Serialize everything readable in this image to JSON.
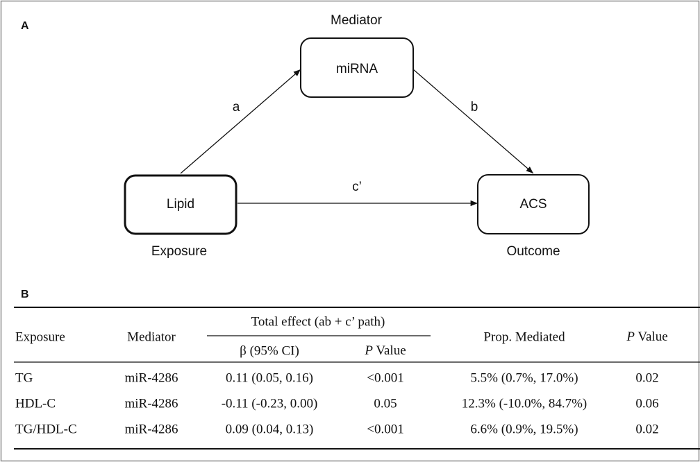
{
  "panel_a": {
    "label": "A",
    "mediator_caption": "Mediator",
    "exposure_caption": "Exposure",
    "outcome_caption": "Outcome",
    "nodes": {
      "mediator": "miRNA",
      "exposure": "Lipid",
      "outcome": "ACS"
    },
    "paths": {
      "a": "a",
      "b": "b",
      "c_prime": "c’"
    }
  },
  "panel_b": {
    "label": "B",
    "table": {
      "header": {
        "exposure": "Exposure",
        "mediator": "Mediator",
        "total_effect": "Total effect (ab + c’ path)",
        "beta": "β (95% CI)",
        "total_p": {
          "italic": "P",
          "rest": "Value"
        },
        "prop_mediated": "Prop. Mediated",
        "p": {
          "italic": "P",
          "rest": "Value"
        }
      },
      "rows": [
        [
          "TG",
          "miR-4286",
          "0.11 (0.05, 0.16)",
          "<0.001",
          "5.5% (0.7%, 17.0%)",
          "0.02"
        ],
        [
          "HDL-C",
          "miR-4286",
          "-0.11 (-0.23, 0.00)",
          "0.05",
          "12.3% (-10.0%, 84.7%)",
          "0.06"
        ],
        [
          "TG/HDL-C",
          "miR-4286",
          "0.09 (0.04, 0.13)",
          "<0.001",
          "6.6% (0.9%, 19.5%)",
          "0.02"
        ]
      ]
    }
  }
}
